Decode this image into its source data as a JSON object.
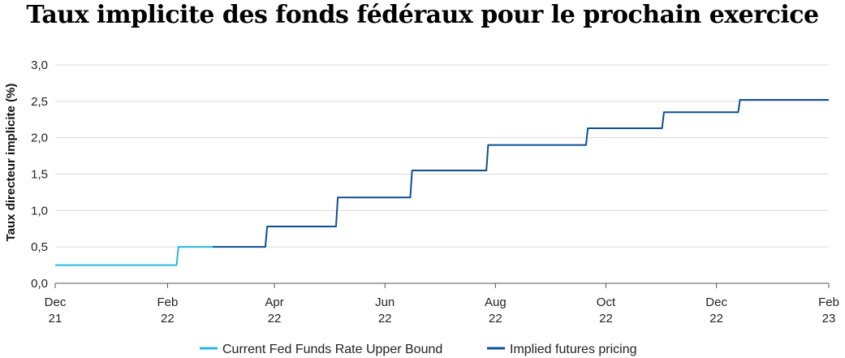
{
  "chart_data": {
    "type": "line",
    "title": "Taux implicite des fonds fédéraux pour le prochain exercice",
    "ylabel": "Taux directeur implicite (%)",
    "xlabel": "",
    "ylim": [
      0,
      3
    ],
    "yticks": [
      "0,0",
      "0,5",
      "1,0",
      "1,5",
      "2,0",
      "2,5",
      "3,0"
    ],
    "ytick_values": [
      0,
      0.5,
      1.0,
      1.5,
      2.0,
      2.5,
      3.0
    ],
    "xlim": [
      "2021-12-01",
      "2023-02-01"
    ],
    "xticks": [
      {
        "date": "2021-12-01",
        "line1": "Dec",
        "line2": "21"
      },
      {
        "date": "2022-02-01",
        "line1": "Feb",
        "line2": "22"
      },
      {
        "date": "2022-04-01",
        "line1": "Apr",
        "line2": "22"
      },
      {
        "date": "2022-06-01",
        "line1": "Jun",
        "line2": "22"
      },
      {
        "date": "2022-08-01",
        "line1": "Aug",
        "line2": "22"
      },
      {
        "date": "2022-10-01",
        "line1": "Oct",
        "line2": "22"
      },
      {
        "date": "2022-12-01",
        "line1": "Dec",
        "line2": "22"
      },
      {
        "date": "2023-02-01",
        "line1": "Feb",
        "line2": "23"
      }
    ],
    "grid": true,
    "legend": "bottom",
    "series": [
      {
        "name": "Current Fed Funds Rate Upper Bound",
        "color": "#29b6e0",
        "points": [
          {
            "x": "2021-12-01",
            "y": 0.25
          },
          {
            "x": "2022-02-06",
            "y": 0.25
          },
          {
            "x": "2022-02-07",
            "y": 0.5
          },
          {
            "x": "2022-02-26",
            "y": 0.5
          }
        ]
      },
      {
        "name": "Implied futures pricing",
        "color": "#0d4f91",
        "points": [
          {
            "x": "2022-02-26",
            "y": 0.5
          },
          {
            "x": "2022-03-27",
            "y": 0.5
          },
          {
            "x": "2022-03-28",
            "y": 0.78
          },
          {
            "x": "2022-05-05",
            "y": 0.78
          },
          {
            "x": "2022-05-06",
            "y": 1.18
          },
          {
            "x": "2022-06-15",
            "y": 1.18
          },
          {
            "x": "2022-06-16",
            "y": 1.55
          },
          {
            "x": "2022-07-27",
            "y": 1.55
          },
          {
            "x": "2022-07-28",
            "y": 1.9
          },
          {
            "x": "2022-09-20",
            "y": 1.9
          },
          {
            "x": "2022-09-21",
            "y": 2.13
          },
          {
            "x": "2022-11-01",
            "y": 2.13
          },
          {
            "x": "2022-11-02",
            "y": 2.35
          },
          {
            "x": "2022-12-13",
            "y": 2.35
          },
          {
            "x": "2022-12-14",
            "y": 2.52
          },
          {
            "x": "2023-02-01",
            "y": 2.52
          }
        ]
      }
    ]
  }
}
